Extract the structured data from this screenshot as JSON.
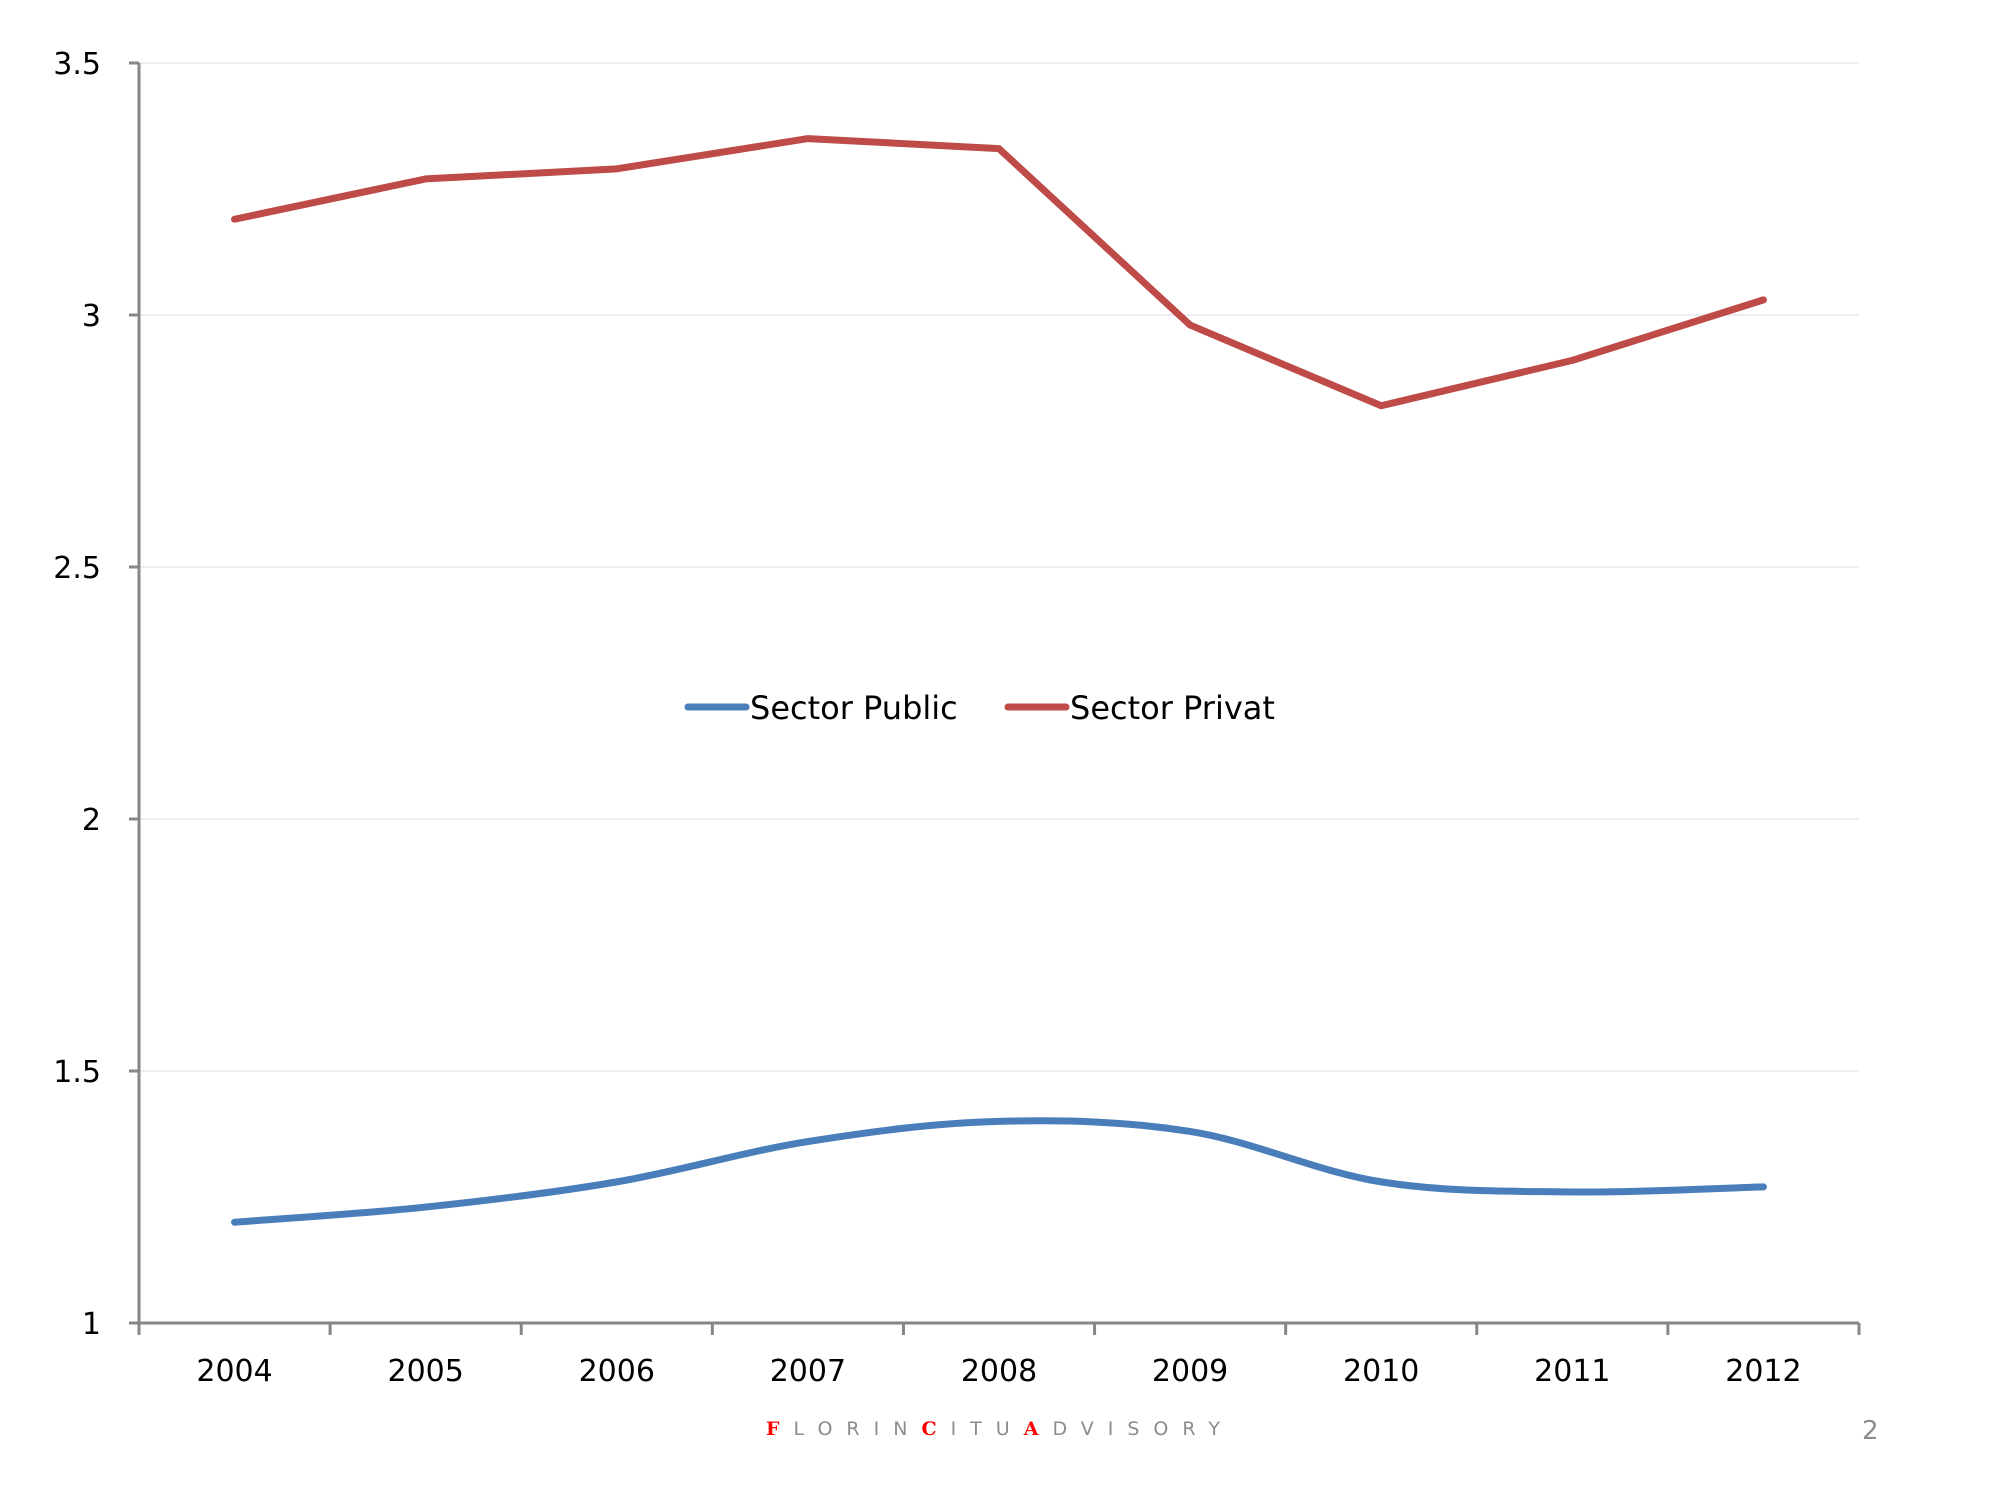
{
  "chart_data": {
    "type": "line",
    "title": "",
    "xlabel": "",
    "ylabel": "",
    "categories": [
      "2004",
      "2005",
      "2006",
      "2007",
      "2008",
      "2009",
      "2010",
      "2011",
      "2012"
    ],
    "series": [
      {
        "name": "Sector Public",
        "color": "#4a7ebb",
        "smooth": true,
        "values": [
          1.2,
          1.23,
          1.28,
          1.36,
          1.4,
          1.38,
          1.28,
          1.26,
          1.27
        ]
      },
      {
        "name": "Sector Privat",
        "color": "#be4b48",
        "smooth": false,
        "values": [
          3.19,
          3.27,
          3.29,
          3.35,
          3.33,
          2.98,
          2.82,
          2.91,
          3.03
        ]
      }
    ],
    "ylim": [
      1,
      3.5
    ],
    "yticks": [
      1,
      1.5,
      2,
      2.5,
      3,
      3.5
    ],
    "ytick_labels": [
      "1",
      "1.5",
      "2",
      "2.5",
      "3",
      "3.5"
    ],
    "grid": true,
    "legend_position": "center"
  },
  "footer": {
    "brand_parts": [
      {
        "text": "F",
        "accent": true
      },
      {
        "text": "LORIN",
        "accent": false
      },
      {
        "text": "C",
        "accent": true
      },
      {
        "text": "ITU",
        "accent": false
      },
      {
        "text": "A",
        "accent": true
      },
      {
        "text": "DVISORY",
        "accent": false
      }
    ],
    "accent_color": "#ff0000",
    "page_number": "2"
  }
}
